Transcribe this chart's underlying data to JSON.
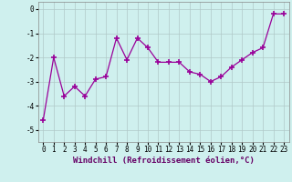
{
  "x": [
    0,
    1,
    2,
    3,
    4,
    5,
    6,
    7,
    8,
    9,
    10,
    11,
    12,
    13,
    14,
    15,
    16,
    17,
    18,
    19,
    20,
    21,
    22,
    23
  ],
  "y": [
    -4.6,
    -2.0,
    -3.6,
    -3.2,
    -3.6,
    -2.9,
    -2.8,
    -1.2,
    -2.1,
    -1.2,
    -1.6,
    -2.2,
    -2.2,
    -2.2,
    -2.6,
    -2.7,
    -3.0,
    -2.8,
    -2.4,
    -2.1,
    -1.8,
    -1.6,
    -0.2,
    -0.2
  ],
  "line_color": "#990099",
  "marker": "+",
  "marker_size": 4,
  "marker_lw": 1.2,
  "bg_color": "#cff0ee",
  "grid_color": "#b0c8c8",
  "xlabel": "Windchill (Refroidissement éolien,°C)",
  "xlim": [
    -0.5,
    23.5
  ],
  "ylim": [
    -5.5,
    0.3
  ],
  "yticks": [
    0,
    -1,
    -2,
    -3,
    -4,
    -5
  ],
  "xticks": [
    0,
    1,
    2,
    3,
    4,
    5,
    6,
    7,
    8,
    9,
    10,
    11,
    12,
    13,
    14,
    15,
    16,
    17,
    18,
    19,
    20,
    21,
    22,
    23
  ],
  "xlabel_fontsize": 6.5,
  "tick_fontsize": 5.5,
  "line_width": 0.9
}
